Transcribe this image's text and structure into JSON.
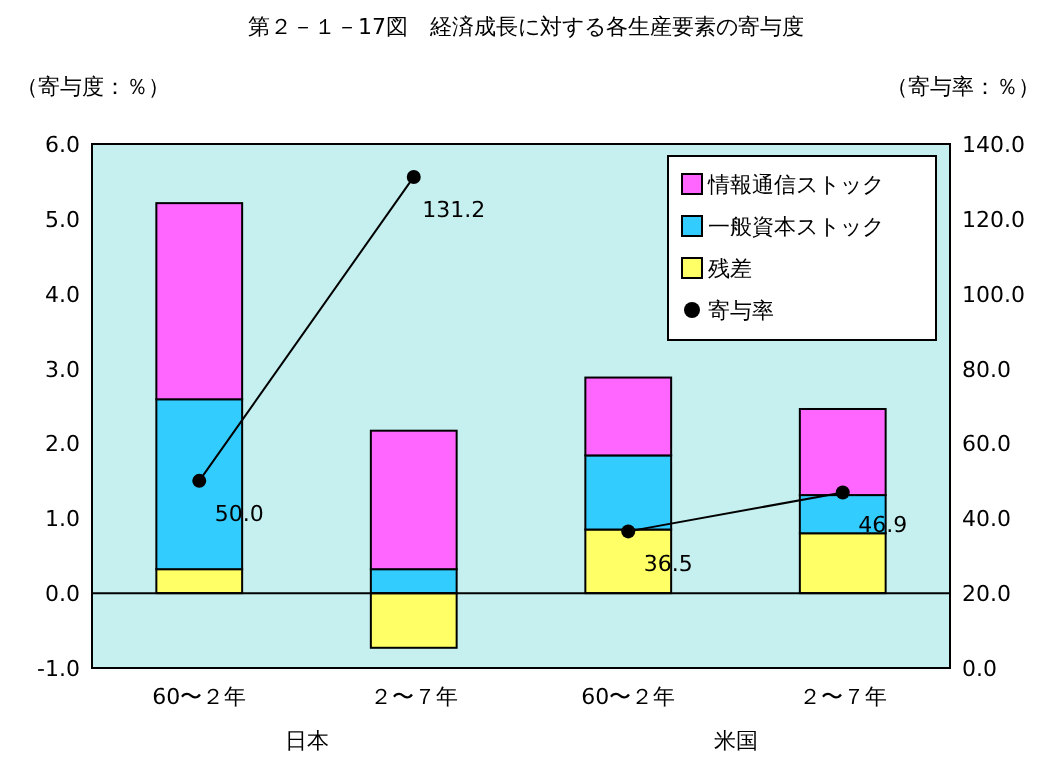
{
  "chart_data": {
    "type": "bar",
    "stacked": true,
    "title": "第２－１－17図　経済成長に対する各生産要素の寄与度",
    "ylabel": "（寄与度：％）",
    "y2label": "（寄与率：％）",
    "categories": [
      "60〜２年",
      "２〜７年",
      "60〜２年",
      "２〜７年"
    ],
    "annotations": [
      "日本",
      "米国"
    ],
    "series": [
      {
        "name": "残差",
        "color": "#ffff66",
        "values": [
          0.32,
          -0.73,
          0.85,
          0.8
        ]
      },
      {
        "name": "一般資本ストック",
        "color": "#33ccff",
        "values": [
          2.27,
          0.32,
          0.99,
          0.51
        ]
      },
      {
        "name": "情報通信ストック",
        "color": "#ff66ff",
        "values": [
          2.62,
          1.85,
          1.04,
          1.15
        ]
      },
      {
        "name": "寄与率",
        "type": "line",
        "axis": "y2",
        "color": "#000000",
        "marker": "circle",
        "values": [
          50.0,
          131.2,
          36.5,
          46.9
        ],
        "value_labels": [
          "50.0",
          "131.2",
          "36.5",
          "46.9"
        ]
      }
    ],
    "ylim": [
      -1,
      6
    ],
    "yticks": [
      {
        "value": -1,
        "label": "-1.0"
      },
      {
        "value": 0,
        "label": "0.0"
      },
      {
        "value": 1,
        "label": "1.0"
      },
      {
        "value": 2,
        "label": "2.0"
      },
      {
        "value": 3,
        "label": "3.0"
      },
      {
        "value": 4,
        "label": "4.0"
      },
      {
        "value": 5,
        "label": "5.0"
      },
      {
        "value": 6,
        "label": "6.0"
      }
    ],
    "y2lim": [
      0,
      140
    ],
    "y2ticks": [
      {
        "value": 0,
        "label": "0.0"
      },
      {
        "value": 20,
        "label": "20.0"
      },
      {
        "value": 40,
        "label": "40.0"
      },
      {
        "value": 60,
        "label": "60.0"
      },
      {
        "value": 80,
        "label": "80.0"
      },
      {
        "value": 100,
        "label": "100.0"
      },
      {
        "value": 120,
        "label": "120.0"
      },
      {
        "value": 140,
        "label": "140.0"
      }
    ],
    "legend": "top right"
  }
}
